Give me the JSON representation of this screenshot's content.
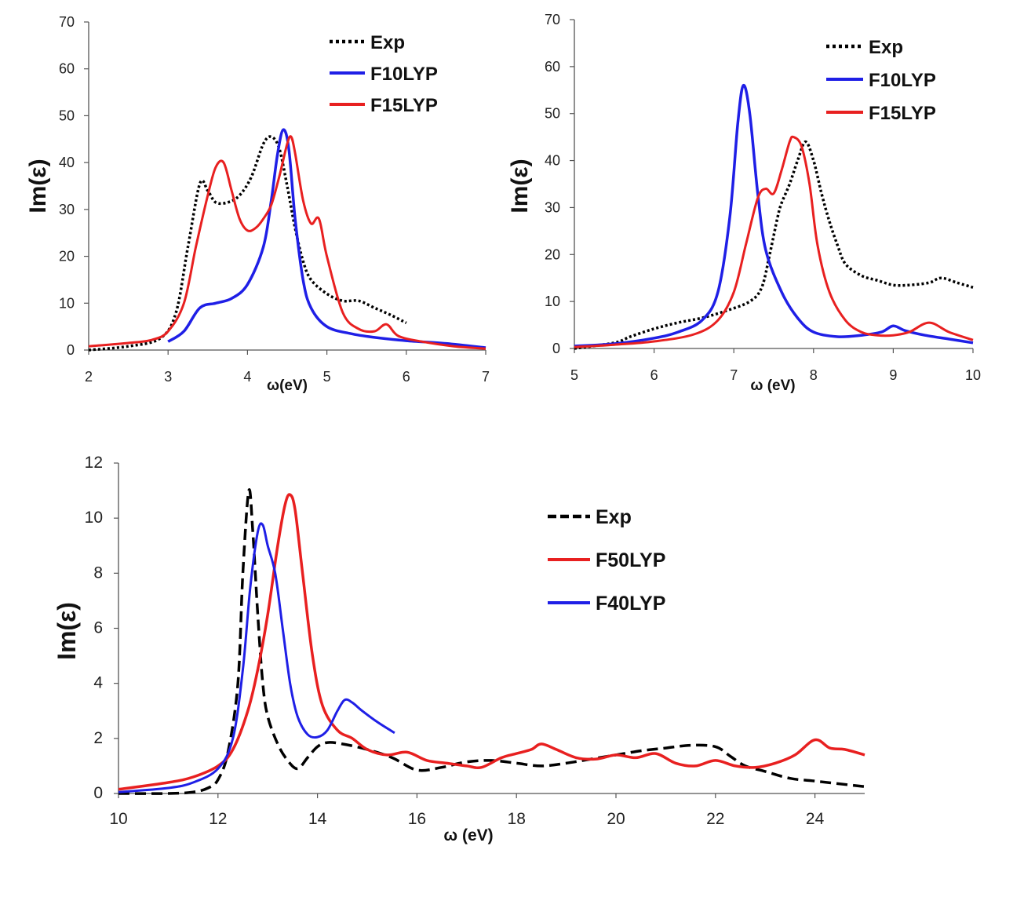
{
  "chart_data": [
    {
      "type": "line",
      "xlabel": "ω(eV)",
      "ylabel": "Im(ε)",
      "xlim": [
        2,
        7
      ],
      "ylim": [
        0,
        70
      ],
      "xticks": [
        "2",
        "3",
        "4",
        "5",
        "6",
        "7"
      ],
      "yticks": [
        "0",
        "10",
        "20",
        "30",
        "40",
        "50",
        "60",
        "70"
      ],
      "legend_position": "top-right",
      "series": [
        {
          "name": "Exp",
          "color": "#000000",
          "style": "dotted",
          "x": [
            2.0,
            2.5,
            2.9,
            3.1,
            3.25,
            3.4,
            3.5,
            3.6,
            3.75,
            3.9,
            4.05,
            4.2,
            4.3,
            4.4,
            4.5,
            4.6,
            4.7,
            4.8,
            5.0,
            5.2,
            5.4,
            5.6,
            5.8,
            6.0
          ],
          "y": [
            0.0,
            0.8,
            2.5,
            8.0,
            22.0,
            35.5,
            34.0,
            31.5,
            31.5,
            33.0,
            37.0,
            44.0,
            45.5,
            43.0,
            35.0,
            26.0,
            19.0,
            15.0,
            12.0,
            10.5,
            10.5,
            9.0,
            7.5,
            5.8
          ]
        },
        {
          "name": "F10LYP",
          "color": "#1f1fe6",
          "style": "solid",
          "x": [
            3.0,
            3.2,
            3.4,
            3.6,
            3.8,
            4.0,
            4.2,
            4.3,
            4.38,
            4.45,
            4.52,
            4.6,
            4.7,
            4.8,
            5.0,
            5.3,
            5.6,
            6.0,
            6.5,
            7.0
          ],
          "y": [
            1.8,
            4.0,
            9.0,
            10.0,
            11.0,
            14.0,
            22.0,
            32.0,
            42.0,
            47.0,
            43.0,
            28.0,
            15.0,
            9.0,
            5.0,
            3.5,
            2.7,
            2.0,
            1.4,
            0.5
          ]
        },
        {
          "name": "F15LYP",
          "color": "#e82020",
          "style": "solid",
          "x": [
            2.0,
            2.5,
            2.8,
            3.0,
            3.2,
            3.35,
            3.5,
            3.6,
            3.7,
            3.8,
            3.9,
            4.0,
            4.1,
            4.2,
            4.3,
            4.4,
            4.5,
            4.55,
            4.6,
            4.7,
            4.8,
            4.9,
            5.0,
            5.2,
            5.4,
            5.6,
            5.75,
            5.9,
            6.2,
            6.6,
            7.0
          ],
          "y": [
            0.8,
            1.5,
            2.2,
            4.0,
            10.0,
            22.0,
            33.0,
            39.0,
            40.0,
            34.0,
            28.0,
            25.5,
            26.0,
            28.0,
            31.0,
            37.0,
            44.0,
            45.5,
            42.0,
            32.0,
            27.0,
            28.0,
            20.0,
            8.0,
            4.5,
            4.0,
            5.5,
            3.0,
            1.8,
            0.8,
            0.3
          ]
        }
      ]
    },
    {
      "type": "line",
      "xlabel": "ω (eV)",
      "ylabel": "Im(ε)",
      "xlim": [
        5,
        10
      ],
      "ylim": [
        0,
        70
      ],
      "xticks": [
        "5",
        "6",
        "7",
        "8",
        "9",
        "10"
      ],
      "yticks": [
        "0",
        "10",
        "20",
        "30",
        "40",
        "50",
        "60",
        "70"
      ],
      "legend_position": "top-right",
      "series": [
        {
          "name": "Exp",
          "color": "#000000",
          "style": "dotted",
          "x": [
            5.0,
            5.5,
            5.7,
            6.0,
            6.3,
            6.6,
            6.9,
            7.2,
            7.35,
            7.45,
            7.55,
            7.6,
            7.7,
            7.8,
            7.9,
            8.0,
            8.1,
            8.2,
            8.3,
            8.4,
            8.6,
            8.8,
            9.0,
            9.2,
            9.45,
            9.6,
            9.8,
            10.0
          ],
          "y": [
            0.0,
            1.2,
            2.5,
            4.2,
            5.5,
            6.5,
            8.0,
            10.0,
            13.0,
            20.0,
            28.0,
            31.0,
            35.0,
            40.0,
            44.0,
            40.0,
            33.0,
            27.0,
            22.0,
            18.0,
            15.5,
            14.5,
            13.5,
            13.5,
            14.0,
            15.0,
            14.0,
            13.0
          ]
        },
        {
          "name": "F10LYP",
          "color": "#1f1fe6",
          "style": "solid",
          "x": [
            5.0,
            5.5,
            6.0,
            6.3,
            6.6,
            6.8,
            6.95,
            7.05,
            7.12,
            7.2,
            7.3,
            7.4,
            7.6,
            7.8,
            8.0,
            8.3,
            8.6,
            8.85,
            9.0,
            9.15,
            9.4,
            9.7,
            10.0
          ],
          "y": [
            0.5,
            1.0,
            2.2,
            3.5,
            6.0,
            12.0,
            28.0,
            48.0,
            56.0,
            50.0,
            33.0,
            21.0,
            12.0,
            6.5,
            3.5,
            2.5,
            2.8,
            3.5,
            4.8,
            3.8,
            2.8,
            2.0,
            1.2
          ]
        },
        {
          "name": "F15LYP",
          "color": "#e82020",
          "style": "solid",
          "x": [
            5.0,
            5.5,
            6.0,
            6.5,
            6.8,
            7.0,
            7.15,
            7.3,
            7.4,
            7.5,
            7.6,
            7.7,
            7.75,
            7.85,
            7.95,
            8.05,
            8.2,
            8.4,
            8.6,
            8.8,
            9.0,
            9.2,
            9.45,
            9.7,
            10.0
          ],
          "y": [
            0.3,
            0.8,
            1.5,
            3.0,
            6.0,
            12.0,
            22.0,
            32.0,
            34.0,
            33.0,
            38.0,
            44.0,
            45.0,
            43.0,
            35.0,
            22.0,
            12.0,
            6.0,
            3.5,
            2.8,
            2.8,
            3.5,
            5.5,
            3.5,
            1.8
          ]
        }
      ]
    },
    {
      "type": "line",
      "xlabel": "ω (eV)",
      "ylabel": "Im(ε)",
      "xlim": [
        10,
        25
      ],
      "ylim": [
        0,
        12
      ],
      "xticks": [
        "10",
        "12",
        "14",
        "16",
        "18",
        "20",
        "22",
        "24"
      ],
      "yticks": [
        "0",
        "2",
        "4",
        "6",
        "8",
        "10",
        "12"
      ],
      "legend_position": "top-right",
      "series": [
        {
          "name": "Exp",
          "color": "#000000",
          "style": "dashed",
          "x": [
            10.0,
            11.0,
            11.5,
            11.8,
            12.0,
            12.2,
            12.4,
            12.5,
            12.62,
            12.7,
            12.8,
            12.9,
            13.0,
            13.2,
            13.4,
            13.6,
            13.8,
            14.0,
            14.2,
            14.5,
            15.0,
            15.5,
            16.0,
            16.5,
            17.0,
            17.5,
            18.0,
            18.5,
            19.0,
            19.5,
            20.0,
            20.5,
            21.0,
            21.5,
            22.0,
            22.3,
            22.6,
            23.0,
            23.5,
            24.0,
            25.0
          ],
          "y": [
            0.0,
            0.0,
            0.05,
            0.2,
            0.5,
            1.5,
            4.0,
            8.0,
            11.0,
            9.5,
            6.5,
            4.0,
            2.8,
            1.8,
            1.2,
            0.9,
            1.3,
            1.7,
            1.85,
            1.8,
            1.6,
            1.3,
            0.85,
            0.95,
            1.15,
            1.2,
            1.1,
            1.0,
            1.1,
            1.25,
            1.4,
            1.55,
            1.65,
            1.75,
            1.7,
            1.35,
            1.0,
            0.8,
            0.55,
            0.45,
            0.25
          ]
        },
        {
          "name": "F50LYP",
          "color": "#e82020",
          "style": "solid",
          "x": [
            10.0,
            11.0,
            11.5,
            12.0,
            12.3,
            12.6,
            12.8,
            13.0,
            13.2,
            13.35,
            13.45,
            13.55,
            13.7,
            13.9,
            14.1,
            14.4,
            14.7,
            15.0,
            15.4,
            15.8,
            16.2,
            16.6,
            17.0,
            17.3,
            17.7,
            18.0,
            18.3,
            18.5,
            18.8,
            19.2,
            19.6,
            20.0,
            20.4,
            20.8,
            21.2,
            21.6,
            22.0,
            22.4,
            22.8,
            23.2,
            23.6,
            24.0,
            24.3,
            24.6,
            25.0
          ],
          "y": [
            0.15,
            0.4,
            0.6,
            1.0,
            1.6,
            3.0,
            4.5,
            6.5,
            9.0,
            10.5,
            10.85,
            10.3,
            8.0,
            5.0,
            3.2,
            2.3,
            2.0,
            1.6,
            1.4,
            1.5,
            1.2,
            1.1,
            1.0,
            0.95,
            1.3,
            1.45,
            1.6,
            1.8,
            1.6,
            1.3,
            1.25,
            1.4,
            1.3,
            1.45,
            1.1,
            1.0,
            1.2,
            1.0,
            0.95,
            1.1,
            1.4,
            1.95,
            1.65,
            1.6,
            1.4
          ]
        },
        {
          "name": "F40LYP",
          "color": "#1f1fe6",
          "style": "solid",
          "x": [
            10.0,
            11.0,
            11.5,
            12.0,
            12.3,
            12.5,
            12.65,
            12.8,
            12.9,
            13.0,
            13.15,
            13.3,
            13.45,
            13.6,
            13.8,
            14.0,
            14.2,
            14.4,
            14.55,
            14.7,
            14.9,
            15.2,
            15.55
          ],
          "y": [
            0.05,
            0.2,
            0.4,
            0.9,
            2.0,
            4.5,
            7.5,
            9.5,
            9.75,
            9.0,
            8.0,
            6.0,
            4.0,
            2.8,
            2.15,
            2.05,
            2.3,
            3.0,
            3.4,
            3.3,
            3.0,
            2.6,
            2.2
          ]
        }
      ]
    }
  ]
}
